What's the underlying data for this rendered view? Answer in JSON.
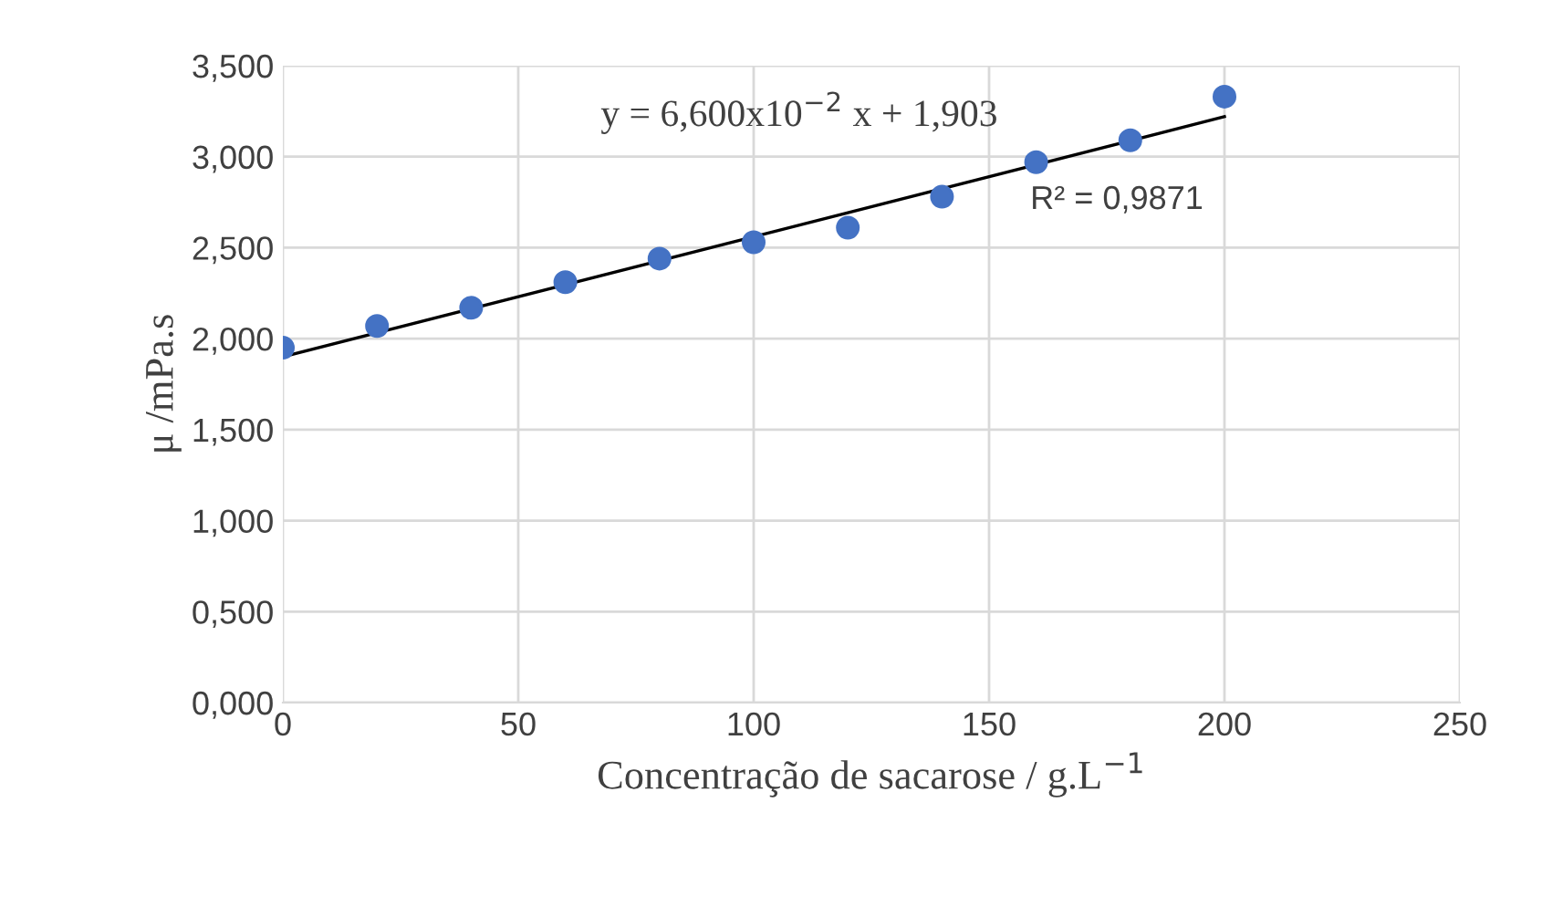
{
  "chart_data": {
    "type": "scatter",
    "xlabel": "Concentração de sacarose / g.L$^{−1}$",
    "ylabel": "μ /mPa.s",
    "x": [
      0,
      20,
      40,
      60,
      80,
      100,
      120,
      140,
      160,
      180,
      200
    ],
    "series": [
      {
        "marker": "circle",
        "color": "#4472c4",
        "values": [
          1.95,
          2.07,
          2.17,
          2.31,
          2.44,
          2.53,
          2.61,
          2.78,
          2.97,
          3.09,
          3.33
        ]
      },
      {
        "type": "line",
        "color": "#000000",
        "x": [
          0,
          200
        ],
        "values": [
          1.9,
          3.22
        ]
      }
    ],
    "xlim": [
      0,
      250
    ],
    "xticks": [
      0,
      50,
      100,
      150,
      200,
      250
    ],
    "ylim": [
      0,
      3.5
    ],
    "yticks": [
      {
        "value": 0,
        "label": "0,000"
      },
      {
        "value": 0.5,
        "label": "0,500"
      },
      {
        "value": 1.0,
        "label": "1,000"
      },
      {
        "value": 1.5,
        "label": "1,500"
      },
      {
        "value": 2.0,
        "label": "2,000"
      },
      {
        "value": 2.5,
        "label": "2,500"
      },
      {
        "value": 3.0,
        "label": "3,000"
      },
      {
        "value": 3.5,
        "label": "3,500"
      }
    ],
    "grid": true,
    "annotations": [
      "y = 6,600x10$^{−2}$ x + 1,903",
      "R² = 0,9871"
    ]
  }
}
